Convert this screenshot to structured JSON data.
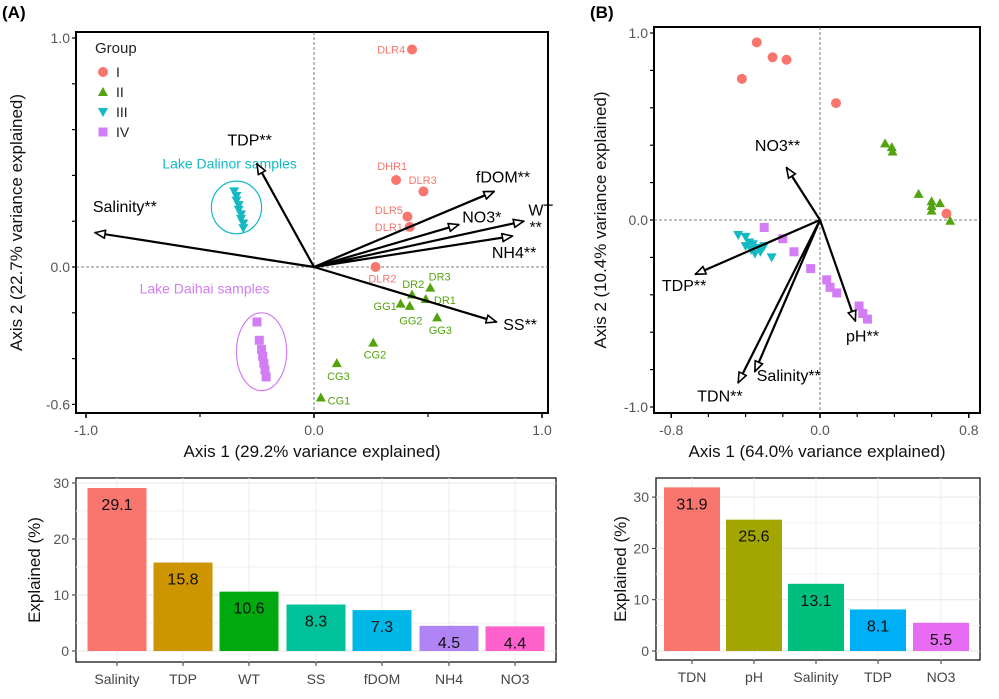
{
  "panels": {
    "a": "(A)",
    "b": "(B)"
  },
  "group_colors": {
    "I": "#F8766D",
    "II": "#53A30E",
    "III": "#14B9C4",
    "IV": "#D27CF5"
  },
  "chart_data": [
    {
      "id": "rda_a",
      "type": "scatter",
      "xlabel": "Axis 1 (29.2% variance explained)",
      "ylabel": "Axis 2 (22.7% variance explained)",
      "xlim": [
        -1.0,
        1.0
      ],
      "ylim": [
        -0.6,
        1.0
      ],
      "xticks": [
        "-1.0",
        "0.0",
        "1.0"
      ],
      "xtick_values": [
        -1.0,
        0.0,
        1.0
      ],
      "yticks": [
        "-0.6",
        "0.0",
        "1.0"
      ],
      "ytick_values": [
        -0.6,
        0.0,
        1.0
      ],
      "legend": {
        "title": "Group",
        "position": "top-left",
        "entries": [
          "I",
          "II",
          "III",
          "IV"
        ]
      },
      "points": [
        {
          "group": "I",
          "label": "DLR4",
          "x": 0.43,
          "y": 0.95
        },
        {
          "group": "I",
          "label": "DHR1",
          "x": 0.36,
          "y": 0.38
        },
        {
          "group": "I",
          "label": "DLR3",
          "x": 0.48,
          "y": 0.33
        },
        {
          "group": "I",
          "label": "DLR5",
          "x": 0.41,
          "y": 0.22
        },
        {
          "group": "I",
          "label": "DLR1",
          "x": 0.42,
          "y": 0.175
        },
        {
          "group": "I",
          "label": "DLR2",
          "x": 0.27,
          "y": 0.0
        },
        {
          "group": "II",
          "label": "DR3",
          "x": 0.51,
          "y": -0.09
        },
        {
          "group": "II",
          "label": "DR2",
          "x": 0.43,
          "y": -0.12
        },
        {
          "group": "II",
          "label": "DR1",
          "x": 0.49,
          "y": -0.14
        },
        {
          "group": "II",
          "label": "GG1",
          "x": 0.38,
          "y": -0.16
        },
        {
          "group": "II",
          "label": "GG2",
          "x": 0.42,
          "y": -0.17
        },
        {
          "group": "II",
          "label": "GG3",
          "x": 0.54,
          "y": -0.22
        },
        {
          "group": "II",
          "label": "CG2",
          "x": 0.26,
          "y": -0.33
        },
        {
          "group": "II",
          "label": "CG3",
          "x": 0.1,
          "y": -0.42
        },
        {
          "group": "II",
          "label": "CG1",
          "x": 0.03,
          "y": -0.57
        },
        {
          "group": "III",
          "x": -0.35,
          "y": 0.33
        },
        {
          "group": "III",
          "x": -0.34,
          "y": 0.31
        },
        {
          "group": "III",
          "x": -0.34,
          "y": 0.29
        },
        {
          "group": "III",
          "x": -0.33,
          "y": 0.27
        },
        {
          "group": "III",
          "x": -0.33,
          "y": 0.25
        },
        {
          "group": "III",
          "x": -0.32,
          "y": 0.23
        },
        {
          "group": "III",
          "x": -0.32,
          "y": 0.21
        },
        {
          "group": "III",
          "x": -0.31,
          "y": 0.19
        },
        {
          "group": "III",
          "x": -0.31,
          "y": 0.17
        },
        {
          "group": "IV",
          "x": -0.25,
          "y": -0.24
        },
        {
          "group": "IV",
          "x": -0.24,
          "y": -0.32
        },
        {
          "group": "IV",
          "x": -0.23,
          "y": -0.36
        },
        {
          "group": "IV",
          "x": -0.225,
          "y": -0.39
        },
        {
          "group": "IV",
          "x": -0.22,
          "y": -0.42
        },
        {
          "group": "IV",
          "x": -0.215,
          "y": -0.45
        },
        {
          "group": "IV",
          "x": -0.21,
          "y": -0.48
        }
      ],
      "arrows": [
        {
          "label": "Salinity**",
          "x": -0.96,
          "y": 0.15
        },
        {
          "label": "TDP**",
          "x": -0.25,
          "y": 0.45
        },
        {
          "label": "fDOM**",
          "x": 0.79,
          "y": 0.33
        },
        {
          "label": "NO3*",
          "x": 0.635,
          "y": 0.185
        },
        {
          "label": "WT",
          "x": 0.92,
          "y": 0.2
        },
        {
          "label": "**",
          "x": 0.92,
          "y": 0.2
        },
        {
          "label": "NH4**",
          "x": 0.87,
          "y": 0.135
        },
        {
          "label": "SS**",
          "x": 0.8,
          "y": -0.24
        }
      ],
      "annotations": [
        {
          "text": "Lake Dalinor samples",
          "group": "III",
          "cx": -0.34,
          "cy": 0.26,
          "rx": 0.11,
          "ry": 0.115
        },
        {
          "text": "Lake Daihai samples",
          "group": "IV",
          "cx": -0.23,
          "cy": -0.37,
          "rx": 0.11,
          "ry": 0.17
        }
      ]
    },
    {
      "id": "rda_b",
      "type": "scatter",
      "xlabel": "Axis 1 (64.0% variance explained)",
      "ylabel": "Axis 2 (10.4% variance explained)",
      "xlim": [
        -0.8,
        0.8
      ],
      "ylim": [
        -1.0,
        1.0
      ],
      "xticks": [
        "-0.8",
        "0.0",
        "0.8"
      ],
      "xtick_values": [
        -0.8,
        0.0,
        0.8
      ],
      "yticks": [
        "-1.0",
        "0.0",
        "1.0"
      ],
      "ytick_values": [
        -1.0,
        0.0,
        1.0
      ],
      "points": [
        {
          "group": "I",
          "x": -0.34,
          "y": 0.95
        },
        {
          "group": "I",
          "x": -0.255,
          "y": 0.87
        },
        {
          "group": "I",
          "x": -0.18,
          "y": 0.857
        },
        {
          "group": "I",
          "x": -0.42,
          "y": 0.755
        },
        {
          "group": "I",
          "x": 0.086,
          "y": 0.625
        },
        {
          "group": "I",
          "x": 0.68,
          "y": 0.034
        },
        {
          "group": "II",
          "x": 0.35,
          "y": 0.41
        },
        {
          "group": "II",
          "x": 0.386,
          "y": 0.39
        },
        {
          "group": "II",
          "x": 0.39,
          "y": 0.366
        },
        {
          "group": "II",
          "x": 0.53,
          "y": 0.14
        },
        {
          "group": "II",
          "x": 0.6,
          "y": 0.1
        },
        {
          "group": "II",
          "x": 0.645,
          "y": 0.09
        },
        {
          "group": "II",
          "x": 0.6,
          "y": 0.075
        },
        {
          "group": "II",
          "x": 0.6,
          "y": 0.05
        },
        {
          "group": "II",
          "x": 0.7,
          "y": -0.004
        },
        {
          "group": "III",
          "x": -0.44,
          "y": -0.08
        },
        {
          "group": "III",
          "x": -0.4,
          "y": -0.09
        },
        {
          "group": "III",
          "x": -0.38,
          "y": -0.12
        },
        {
          "group": "III",
          "x": -0.36,
          "y": -0.13
        },
        {
          "group": "III",
          "x": -0.4,
          "y": -0.14
        },
        {
          "group": "III",
          "x": -0.37,
          "y": -0.16
        },
        {
          "group": "III",
          "x": -0.33,
          "y": -0.15
        },
        {
          "group": "III",
          "x": -0.3,
          "y": -0.14
        },
        {
          "group": "III",
          "x": -0.32,
          "y": -0.17
        },
        {
          "group": "III",
          "x": -0.26,
          "y": -0.2
        },
        {
          "group": "III",
          "x": -0.35,
          "y": -0.18
        },
        {
          "group": "IV",
          "x": -0.3,
          "y": -0.04
        },
        {
          "group": "IV",
          "x": -0.2,
          "y": -0.1
        },
        {
          "group": "IV",
          "x": -0.14,
          "y": -0.17
        },
        {
          "group": "IV",
          "x": -0.05,
          "y": -0.26
        },
        {
          "group": "IV",
          "x": 0.036,
          "y": -0.32
        },
        {
          "group": "IV",
          "x": 0.054,
          "y": -0.36
        },
        {
          "group": "IV",
          "x": 0.09,
          "y": -0.39
        },
        {
          "group": "IV",
          "x": 0.21,
          "y": -0.46
        },
        {
          "group": "IV",
          "x": 0.23,
          "y": -0.5
        },
        {
          "group": "IV",
          "x": 0.255,
          "y": -0.53
        }
      ],
      "arrows": [
        {
          "label": "NO3**",
          "x": -0.18,
          "y": 0.28
        },
        {
          "label": "TDP**",
          "x": -0.67,
          "y": -0.29
        },
        {
          "label": "TDN**",
          "x": -0.44,
          "y": -0.87
        },
        {
          "label": "Salinity**",
          "x": -0.35,
          "y": -0.81
        },
        {
          "label": "pH**",
          "x": 0.19,
          "y": -0.54
        }
      ]
    },
    {
      "id": "bar_a",
      "type": "bar",
      "ylabel": "Explained (%)",
      "ylim": [
        0,
        30
      ],
      "yticks": [
        "0",
        "10",
        "20",
        "30"
      ],
      "ytick_values": [
        0,
        10,
        20,
        30
      ],
      "grid": true,
      "categories": [
        "Salinity",
        "TDP",
        "WT",
        "SS",
        "fDOM",
        "NH4",
        "NO3"
      ],
      "values": [
        29.1,
        15.8,
        10.6,
        8.3,
        7.3,
        4.5,
        4.4
      ],
      "labels": [
        "29.1",
        "15.8",
        "10.6",
        "8.3",
        "7.3",
        "4.5",
        "4.4"
      ],
      "colors": [
        "#F8766D",
        "#CD9600",
        "#00A910",
        "#00C19A",
        "#00B8E7",
        "#B184F5",
        "#FF61CC"
      ]
    },
    {
      "id": "bar_b",
      "type": "bar",
      "ylabel": "Explained (%)",
      "ylim": [
        0,
        30
      ],
      "yticks": [
        "0",
        "10",
        "20",
        "30"
      ],
      "ytick_values": [
        0,
        10,
        20,
        30
      ],
      "grid": true,
      "categories": [
        "TDN",
        "pH",
        "Salinity",
        "TDP",
        "NO3"
      ],
      "values": [
        31.9,
        25.6,
        13.1,
        8.1,
        5.5
      ],
      "labels": [
        "31.9",
        "25.6",
        "13.1",
        "8.1",
        "5.5"
      ],
      "colors": [
        "#F8766D",
        "#A3A500",
        "#00BF7D",
        "#00B0F6",
        "#E76BF3"
      ]
    }
  ]
}
